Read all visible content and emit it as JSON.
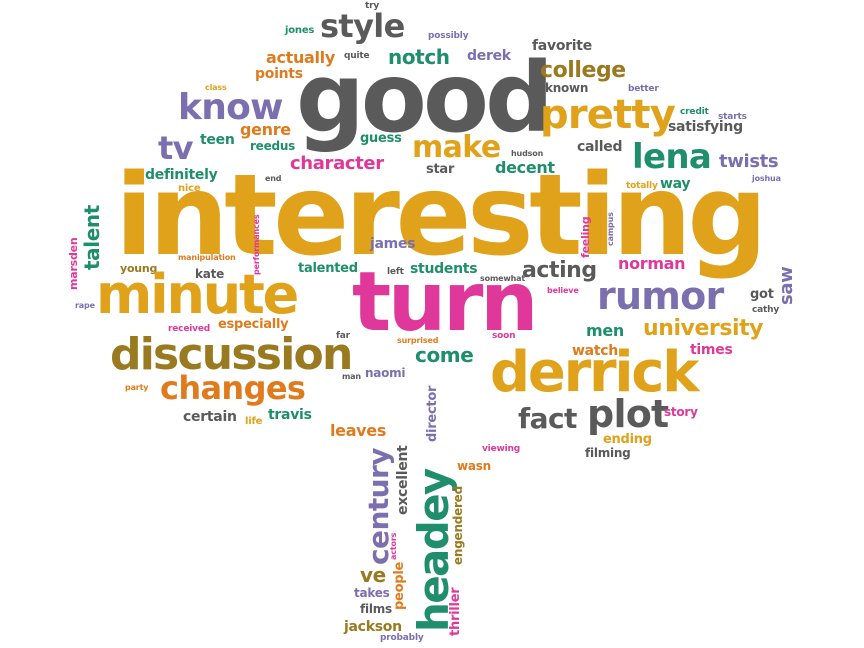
{
  "words": [
    {
      "text": "try",
      "color": "#5a5a5a"
    },
    {
      "text": "jones",
      "color": "#1f8f6b"
    },
    {
      "text": "style",
      "color": "#5a5a5a"
    },
    {
      "text": "possibly",
      "color": "#7b6fb0"
    },
    {
      "text": "quite",
      "color": "#5a5a5a"
    },
    {
      "text": "actually",
      "color": "#e07b1d"
    },
    {
      "text": "notch",
      "color": "#1f8f6b"
    },
    {
      "text": "derek",
      "color": "#7b6fb0"
    },
    {
      "text": "favorite",
      "color": "#5a5a5a"
    },
    {
      "text": "class",
      "color": "#e0a21a"
    },
    {
      "text": "points",
      "color": "#e07b1d"
    },
    {
      "text": "good",
      "color": "#5a5a5a"
    },
    {
      "text": "college",
      "color": "#9a7a20"
    },
    {
      "text": "known",
      "color": "#5a5a5a"
    },
    {
      "text": "better",
      "color": "#7b6fb0"
    },
    {
      "text": "know",
      "color": "#7b6fb0"
    },
    {
      "text": "pretty",
      "color": "#e0a21a"
    },
    {
      "text": "credit",
      "color": "#1f8f6b"
    },
    {
      "text": "starts",
      "color": "#7b6fb0"
    },
    {
      "text": "satisfying",
      "color": "#5a5a5a"
    },
    {
      "text": "genre",
      "color": "#e07b1d"
    },
    {
      "text": "guess",
      "color": "#1f8f6b"
    },
    {
      "text": "teen",
      "color": "#1f8f6b"
    },
    {
      "text": "reedus",
      "color": "#1f8f6b"
    },
    {
      "text": "tv",
      "color": "#7b6fb0"
    },
    {
      "text": "make",
      "color": "#e0a21a"
    },
    {
      "text": "called",
      "color": "#5a5a5a"
    },
    {
      "text": "hudson",
      "color": "#5a5a5a"
    },
    {
      "text": "lena",
      "color": "#1f8f6b"
    },
    {
      "text": "twists",
      "color": "#7b6fb0"
    },
    {
      "text": "character",
      "color": "#e0389a"
    },
    {
      "text": "decent",
      "color": "#1f8f6b"
    },
    {
      "text": "star",
      "color": "#5a5a5a"
    },
    {
      "text": "joshua",
      "color": "#7b6fb0"
    },
    {
      "text": "definitely",
      "color": "#1f8f6b"
    },
    {
      "text": "nice",
      "color": "#e0a21a"
    },
    {
      "text": "end",
      "color": "#5a5a5a"
    },
    {
      "text": "totally",
      "color": "#e0a21a"
    },
    {
      "text": "way",
      "color": "#1f8f6b"
    },
    {
      "text": "interesting",
      "color": "#e0a21a"
    },
    {
      "text": "talent",
      "color": "#1f8f6b"
    },
    {
      "text": "performances",
      "color": "#e0389a"
    },
    {
      "text": "manipulation",
      "color": "#e07b1d"
    },
    {
      "text": "feeling",
      "color": "#e0389a"
    },
    {
      "text": "campus",
      "color": "#7b6fb0"
    },
    {
      "text": "marsden",
      "color": "#e0389a"
    },
    {
      "text": "young",
      "color": "#9a7a20"
    },
    {
      "text": "kate",
      "color": "#5a5a5a"
    },
    {
      "text": "james",
      "color": "#7b6fb0"
    },
    {
      "text": "talented",
      "color": "#1f8f6b"
    },
    {
      "text": "left",
      "color": "#5a5a5a"
    },
    {
      "text": "students",
      "color": "#1f8f6b"
    },
    {
      "text": "somewhat",
      "color": "#5a5a5a"
    },
    {
      "text": "acting",
      "color": "#5a5a5a"
    },
    {
      "text": "norman",
      "color": "#e0389a"
    },
    {
      "text": "saw",
      "color": "#7b6fb0"
    },
    {
      "text": "minute",
      "color": "#e0a21a"
    },
    {
      "text": "turn",
      "color": "#e0389a"
    },
    {
      "text": "believe",
      "color": "#e0389a"
    },
    {
      "text": "rumor",
      "color": "#7b6fb0"
    },
    {
      "text": "got",
      "color": "#5a5a5a"
    },
    {
      "text": "cathy",
      "color": "#5a5a5a"
    },
    {
      "text": "rape",
      "color": "#7b6fb0"
    },
    {
      "text": "received",
      "color": "#e0389a"
    },
    {
      "text": "especially",
      "color": "#e07b1d"
    },
    {
      "text": "far",
      "color": "#5a5a5a"
    },
    {
      "text": "soon",
      "color": "#e0389a"
    },
    {
      "text": "men",
      "color": "#1f8f6b"
    },
    {
      "text": "university",
      "color": "#e0a21a"
    },
    {
      "text": "discussion",
      "color": "#9a7a20"
    },
    {
      "text": "surprised",
      "color": "#e07b1d"
    },
    {
      "text": "come",
      "color": "#1f8f6b"
    },
    {
      "text": "watch",
      "color": "#e07b1d"
    },
    {
      "text": "times",
      "color": "#e0389a"
    },
    {
      "text": "derrick",
      "color": "#e0a21a"
    },
    {
      "text": "man",
      "color": "#5a5a5a"
    },
    {
      "text": "naomi",
      "color": "#7b6fb0"
    },
    {
      "text": "party",
      "color": "#e07b1d"
    },
    {
      "text": "changes",
      "color": "#e07b1d"
    },
    {
      "text": "director",
      "color": "#7b6fb0"
    },
    {
      "text": "fact",
      "color": "#5a5a5a"
    },
    {
      "text": "plot",
      "color": "#5a5a5a"
    },
    {
      "text": "story",
      "color": "#e0389a"
    },
    {
      "text": "certain",
      "color": "#5a5a5a"
    },
    {
      "text": "life",
      "color": "#e0a21a"
    },
    {
      "text": "travis",
      "color": "#1f8f6b"
    },
    {
      "text": "leaves",
      "color": "#e07b1d"
    },
    {
      "text": "ending",
      "color": "#e0a21a"
    },
    {
      "text": "viewing",
      "color": "#e0389a"
    },
    {
      "text": "filming",
      "color": "#5a5a5a"
    },
    {
      "text": "century",
      "color": "#7b6fb0"
    },
    {
      "text": "excellent",
      "color": "#5a5a5a"
    },
    {
      "text": "headey",
      "color": "#1f8f6b"
    },
    {
      "text": "wasn",
      "color": "#e07b1d"
    },
    {
      "text": "engendered",
      "color": "#9a7a20"
    },
    {
      "text": "actors",
      "color": "#e0389a"
    },
    {
      "text": "ve",
      "color": "#9a7a20"
    },
    {
      "text": "people",
      "color": "#e07b1d"
    },
    {
      "text": "takes",
      "color": "#7b6fb0"
    },
    {
      "text": "films",
      "color": "#5a5a5a"
    },
    {
      "text": "thriller",
      "color": "#e0389a"
    },
    {
      "text": "jackson",
      "color": "#9a7a20"
    },
    {
      "text": "probably",
      "color": "#7b6fb0"
    }
  ]
}
